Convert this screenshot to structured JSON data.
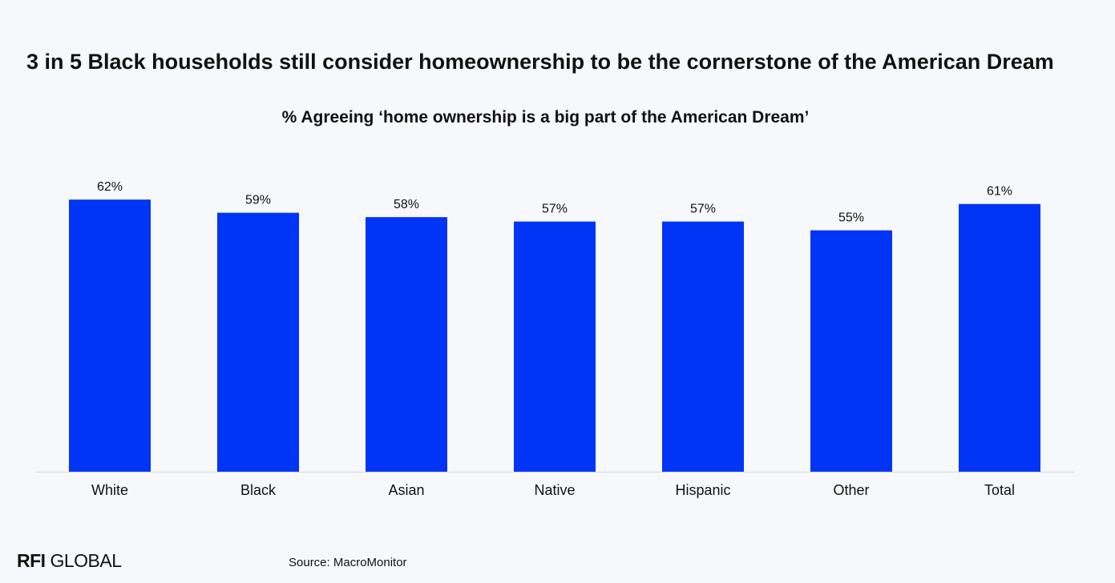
{
  "header": {
    "title": "3 in 5 Black households still consider homeownership to be the cornerstone of the American Dream"
  },
  "chart_data": {
    "type": "bar",
    "title": "% Agreeing ‘home ownership is a big part of the American Dream’",
    "categories": [
      "White",
      "Black",
      "Asian",
      "Native",
      "Hispanic",
      "Other",
      "Total"
    ],
    "values": [
      62,
      59,
      58,
      57,
      57,
      55,
      61
    ],
    "data_labels": [
      "62%",
      "59%",
      "58%",
      "57%",
      "57%",
      "55%",
      "61%"
    ],
    "xlabel": "",
    "ylabel": "",
    "ylim": [
      0,
      65
    ],
    "grid": false,
    "legend": "none",
    "bar_color": "#0035f5"
  },
  "footer": {
    "logo_strong": "RFI",
    "logo_rest": " GLOBAL",
    "source": "Source: MacroMonitor"
  }
}
